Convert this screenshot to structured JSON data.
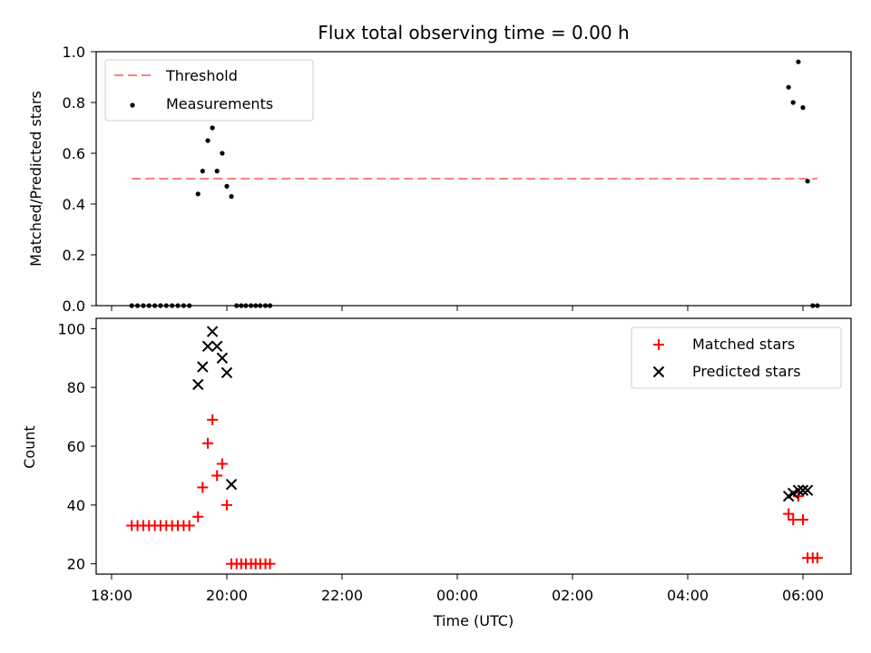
{
  "chart_data": [
    {
      "type": "scatter",
      "title": "Flux total observing time = 0.00 h",
      "xlabel": "",
      "ylabel": "Matched/Predicted stars",
      "ylim": [
        0,
        1
      ],
      "yticks": [
        "0.0",
        "0.2",
        "0.4",
        "0.6",
        "0.8",
        "1.0"
      ],
      "threshold": {
        "name": "Threshold",
        "value": 0.5,
        "x_start": 18.35,
        "x_end": 30.25,
        "color": "#ff8080"
      },
      "legend": {
        "placement": "upper-left",
        "entries": [
          "Threshold",
          "Measurements"
        ]
      },
      "series": [
        {
          "name": "Measurements",
          "color": "#000000",
          "marker": "dot",
          "points": [
            [
              18.35,
              0
            ],
            [
              18.45,
              0
            ],
            [
              18.55,
              0
            ],
            [
              18.65,
              0
            ],
            [
              18.75,
              0
            ],
            [
              18.85,
              0
            ],
            [
              18.95,
              0
            ],
            [
              19.05,
              0
            ],
            [
              19.15,
              0
            ],
            [
              19.25,
              0
            ],
            [
              19.35,
              0
            ],
            [
              19.5,
              0.44
            ],
            [
              19.58,
              0.53
            ],
            [
              19.67,
              0.65
            ],
            [
              19.75,
              0.7
            ],
            [
              19.83,
              0.53
            ],
            [
              19.92,
              0.6
            ],
            [
              20.0,
              0.47
            ],
            [
              20.08,
              0.43
            ],
            [
              20.17,
              0
            ],
            [
              20.25,
              0
            ],
            [
              20.33,
              0
            ],
            [
              20.42,
              0
            ],
            [
              20.5,
              0
            ],
            [
              20.58,
              0
            ],
            [
              20.67,
              0
            ],
            [
              20.75,
              0
            ],
            [
              29.75,
              0.86
            ],
            [
              29.83,
              0.8
            ],
            [
              29.92,
              0.96
            ],
            [
              30.0,
              0.78
            ],
            [
              30.08,
              0.49
            ],
            [
              30.17,
              0
            ],
            [
              30.25,
              0
            ]
          ]
        }
      ]
    },
    {
      "type": "scatter",
      "title": "",
      "xlabel": "Time (UTC)",
      "ylabel": "Count",
      "ylim": [
        16.5,
        103.5
      ],
      "yticks": [
        "20",
        "40",
        "60",
        "80",
        "100"
      ],
      "xticks": [
        "18:00",
        "20:00",
        "22:00",
        "00:00",
        "02:00",
        "04:00",
        "06:00"
      ],
      "legend": {
        "placement": "upper-right",
        "entries": [
          "Matched stars",
          "Predicted stars"
        ]
      },
      "series": [
        {
          "name": "Matched stars",
          "color": "#ff0000",
          "marker": "plus",
          "points": [
            [
              18.35,
              33
            ],
            [
              18.45,
              33
            ],
            [
              18.55,
              33
            ],
            [
              18.65,
              33
            ],
            [
              18.75,
              33
            ],
            [
              18.85,
              33
            ],
            [
              18.95,
              33
            ],
            [
              19.05,
              33
            ],
            [
              19.15,
              33
            ],
            [
              19.25,
              33
            ],
            [
              19.35,
              33
            ],
            [
              19.5,
              36
            ],
            [
              19.58,
              46
            ],
            [
              19.67,
              61
            ],
            [
              19.75,
              69
            ],
            [
              19.83,
              50
            ],
            [
              19.92,
              54
            ],
            [
              20.0,
              40
            ],
            [
              20.08,
              20
            ],
            [
              20.17,
              20
            ],
            [
              20.25,
              20
            ],
            [
              20.33,
              20
            ],
            [
              20.42,
              20
            ],
            [
              20.5,
              20
            ],
            [
              20.58,
              20
            ],
            [
              20.67,
              20
            ],
            [
              20.75,
              20
            ],
            [
              29.75,
              37
            ],
            [
              29.83,
              35
            ],
            [
              29.92,
              43
            ],
            [
              30.0,
              35
            ],
            [
              30.08,
              22
            ],
            [
              30.17,
              22
            ],
            [
              30.25,
              22
            ]
          ]
        },
        {
          "name": "Predicted stars",
          "color": "#000000",
          "marker": "x",
          "points": [
            [
              19.5,
              81
            ],
            [
              19.58,
              87
            ],
            [
              19.67,
              94
            ],
            [
              19.75,
              99
            ],
            [
              19.83,
              94
            ],
            [
              19.92,
              90
            ],
            [
              20.0,
              85
            ],
            [
              20.08,
              47
            ],
            [
              29.75,
              43
            ],
            [
              29.83,
              44
            ],
            [
              29.92,
              45
            ],
            [
              30.0,
              45
            ],
            [
              30.08,
              45
            ]
          ]
        }
      ]
    }
  ]
}
